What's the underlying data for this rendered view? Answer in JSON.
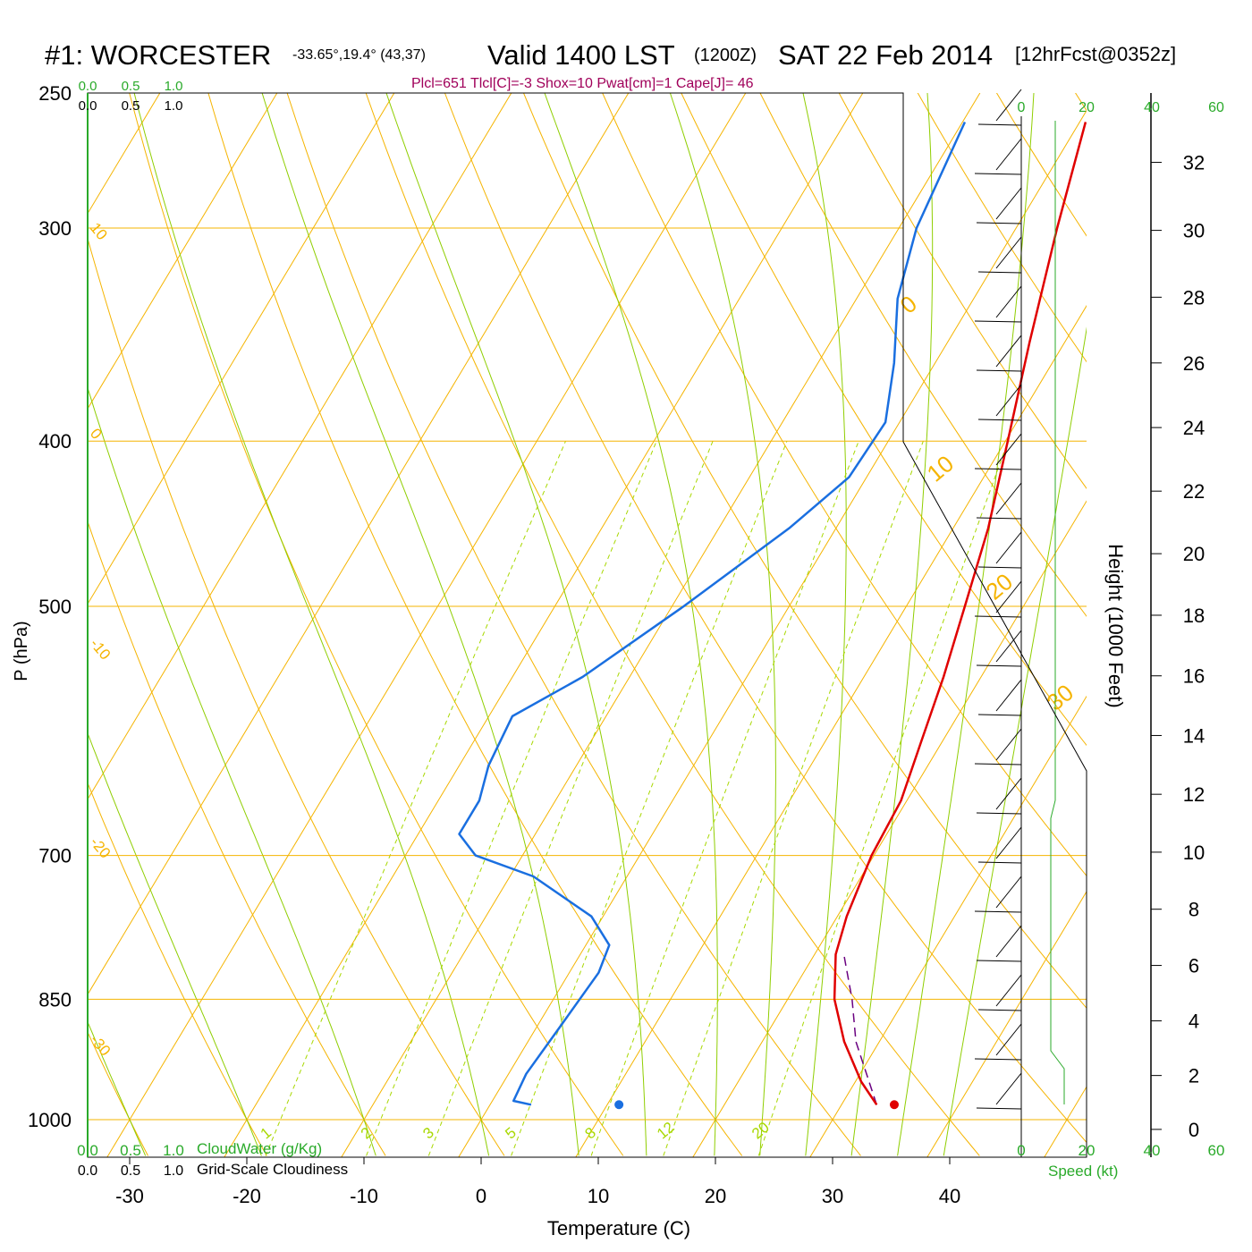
{
  "header": {
    "station": "#1: WORCESTER",
    "coords": "-33.65°,19.4° (43,37)",
    "valid": "Valid 1400 LST",
    "utc": "(1200Z)",
    "date": "SAT 22 Feb 2014",
    "forecast": "[12hrFcst@0352z]",
    "indices": "Plcl=651 Tlcl[C]=-3 Shox=10 Pwat[cm]=1 Cape[J]= 46"
  },
  "colors": {
    "isobar": "#f5b400",
    "adiabat": "#f5b400",
    "moist_adiabat": "#8fce00",
    "mixing_ratio": "#a8d800",
    "temperature": "#e00000",
    "dewpoint": "#1a6fe0",
    "parcel": "#6a0080",
    "cloud": "#2aaa2a",
    "indices": "#a0005a"
  },
  "chart_data": {
    "type": "line",
    "title": "#1: WORCESTER -33.65°,19.4° (43,37) Valid 1400 LST (1200Z) SAT 22 Feb 2014 [12hrFcst@0352z]",
    "xlabel": "Temperature (C)",
    "ylabel": "P (hPa)",
    "y2label": "Height (1000 Feet)",
    "x_ticks": [
      "-30",
      "-20",
      "-10",
      "0",
      "10",
      "20",
      "30",
      "40"
    ],
    "y_ticks": [
      "250",
      "300",
      "400",
      "500",
      "700",
      "850",
      "1000"
    ],
    "y2_ticks": [
      "0",
      "2",
      "4",
      "6",
      "8",
      "10",
      "12",
      "14",
      "16",
      "18",
      "20",
      "22",
      "24",
      "26",
      "28",
      "30",
      "32"
    ],
    "mixing_ratio_labels": [
      "1",
      "2",
      "3",
      "5",
      "8",
      "12",
      "20"
    ],
    "adiabat_labels": [
      "10",
      "0",
      "-10",
      "-20",
      "-30"
    ],
    "moist_labels": [
      "0",
      "10",
      "20",
      "30"
    ],
    "speed_ticks_top": [
      "0",
      "20",
      "40",
      "60"
    ],
    "speed_ticks_bottom": [
      "0",
      "20",
      "40",
      "60"
    ],
    "speed_label": "Speed (kt)",
    "cloud_ticks_top_green": [
      "0.0",
      "0.5",
      "1.0"
    ],
    "cloud_ticks_top_black": [
      "0.0",
      "0.5",
      "1.0"
    ],
    "cloud_ticks_bottom_green": [
      "0.0",
      "0.5",
      "1.0"
    ],
    "cloud_ticks_bottom_black": [
      "0.0",
      "0.5",
      "1.0"
    ],
    "cloud_water_label": "CloudWater (g/Kg)",
    "cloudiness_label": "Grid-Scale Cloudiness",
    "temperature_profile": [
      {
        "p": 980,
        "t": 33.0
      },
      {
        "p": 950,
        "t": 30.5
      },
      {
        "p": 900,
        "t": 27.0
      },
      {
        "p": 850,
        "t": 24.0
      },
      {
        "p": 800,
        "t": 21.8
      },
      {
        "p": 760,
        "t": 20.8
      },
      {
        "p": 700,
        "t": 19.8
      },
      {
        "p": 650,
        "t": 19.5
      },
      {
        "p": 600,
        "t": 18.2
      },
      {
        "p": 550,
        "t": 16.8
      },
      {
        "p": 500,
        "t": 15.0
      },
      {
        "p": 450,
        "t": 13.0
      },
      {
        "p": 400,
        "t": 10.2
      },
      {
        "p": 350,
        "t": 7.0
      },
      {
        "p": 300,
        "t": 3.5
      },
      {
        "p": 260,
        "t": 0.5
      }
    ],
    "dewpoint_profile": [
      {
        "p": 980,
        "t": 3.5
      },
      {
        "p": 975,
        "t": 1.8
      },
      {
        "p": 940,
        "t": 1.5
      },
      {
        "p": 880,
        "t": 2.0
      },
      {
        "p": 820,
        "t": 2.5
      },
      {
        "p": 790,
        "t": 2.0
      },
      {
        "p": 760,
        "t": -1.0
      },
      {
        "p": 720,
        "t": -8.0
      },
      {
        "p": 700,
        "t": -14.0
      },
      {
        "p": 680,
        "t": -16.5
      },
      {
        "p": 650,
        "t": -16.5
      },
      {
        "p": 620,
        "t": -17.5
      },
      {
        "p": 580,
        "t": -18.0
      },
      {
        "p": 550,
        "t": -14.0
      },
      {
        "p": 500,
        "t": -9.0
      },
      {
        "p": 450,
        "t": -4.0
      },
      {
        "p": 420,
        "t": -1.5
      },
      {
        "p": 390,
        "t": -1.2
      },
      {
        "p": 360,
        "t": -3.5
      },
      {
        "p": 330,
        "t": -6.5
      },
      {
        "p": 300,
        "t": -8.5
      },
      {
        "p": 260,
        "t": -9.8
      }
    ],
    "parcel_path": [
      {
        "p": 980,
        "t": 33.0
      },
      {
        "p": 900,
        "t": 28.0
      },
      {
        "p": 850,
        "t": 25.5
      },
      {
        "p": 800,
        "t": 22.5
      }
    ],
    "surface_dewpoint": {
      "p": 980,
      "t": 11.0
    },
    "surface_temperature": {
      "p": 980,
      "t": 34.5
    }
  }
}
